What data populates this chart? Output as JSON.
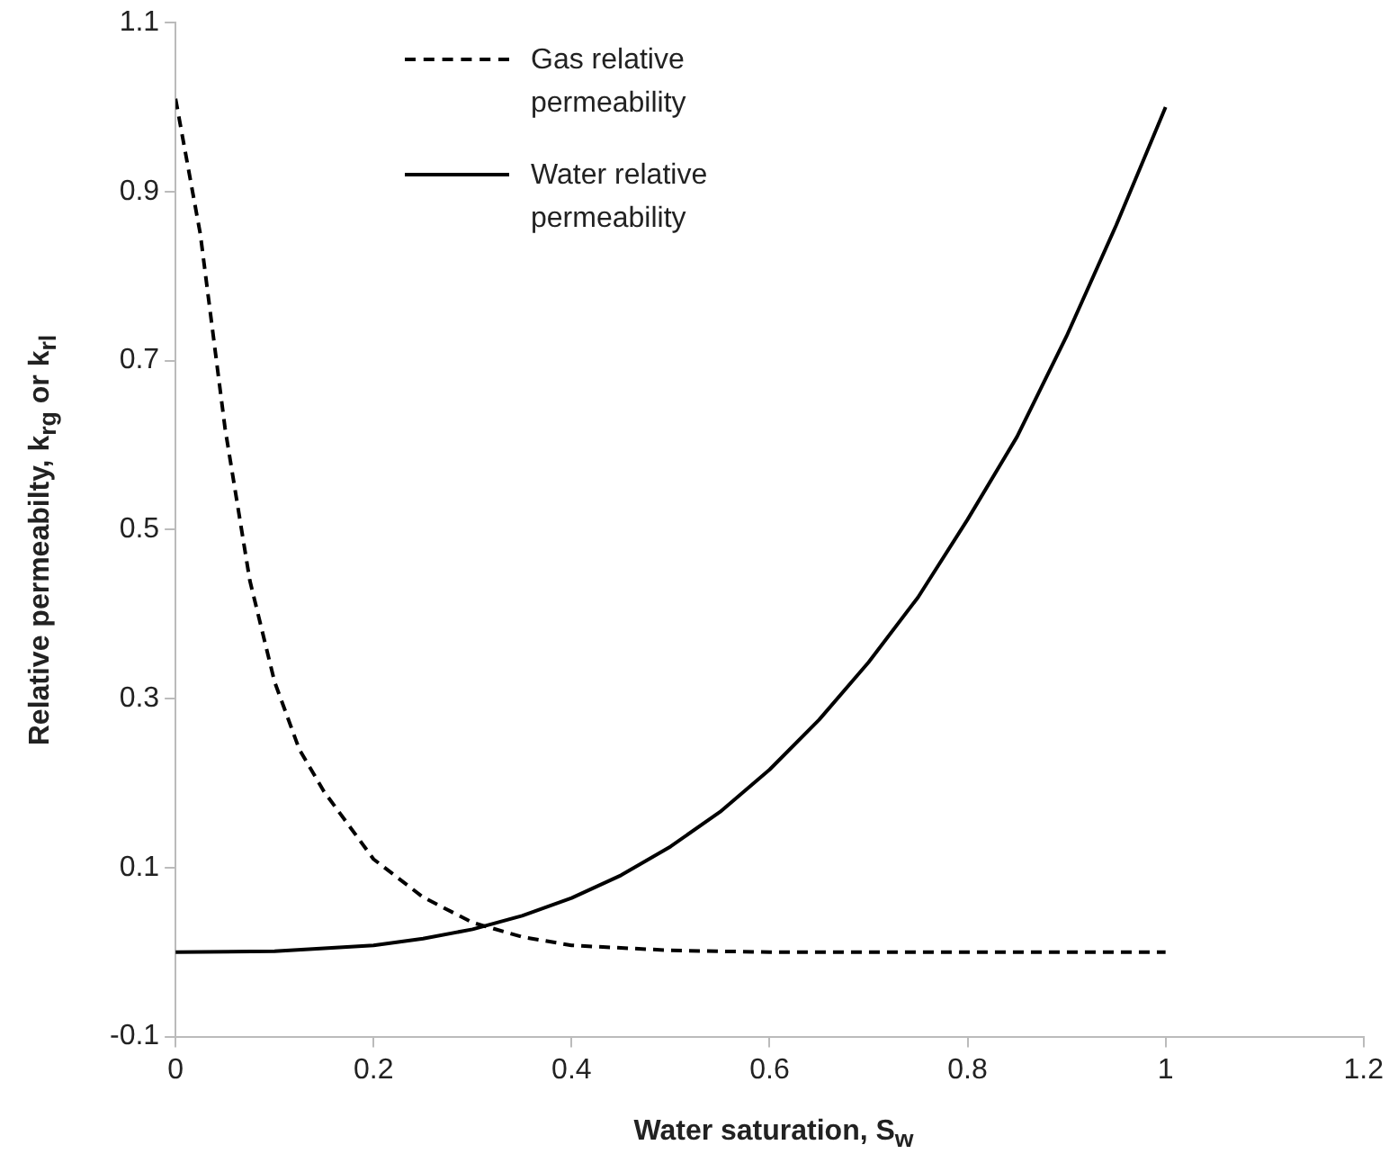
{
  "chart_data": {
    "type": "line",
    "xlabel": "Water saturation, S$_{w}$",
    "ylabel": "Relative permeabilty, k$_{rg}$ or k$_{rl}$",
    "xlim": [
      0,
      1.2
    ],
    "xticks": [
      0,
      0.2,
      0.4,
      0.6,
      0.8,
      1,
      1.2
    ],
    "ylim": [
      -0.1,
      1.1
    ],
    "yticks": [
      -0.1,
      0.1,
      0.3,
      0.5,
      0.7,
      0.9,
      1.1
    ],
    "grid": false,
    "legend": "top",
    "marker": "none",
    "series": [
      {
        "name": "Gas relative permeability",
        "color": "#000000",
        "line_style": "dashed",
        "x": [
          0,
          0.025,
          0.05,
          0.075,
          0.1,
          0.125,
          0.15,
          0.2,
          0.25,
          0.3,
          0.35,
          0.4,
          0.5,
          0.6,
          0.8,
          1
        ],
        "values": [
          1.01,
          0.85,
          0.62,
          0.44,
          0.32,
          0.24,
          0.19,
          0.11,
          0.065,
          0.035,
          0.018,
          0.008,
          0.002,
          0,
          0,
          0
        ]
      },
      {
        "name": "Water relative permeability",
        "color": "#000000",
        "line_style": "solid",
        "x": [
          0,
          0.1,
          0.2,
          0.25,
          0.3,
          0.35,
          0.4,
          0.45,
          0.5,
          0.55,
          0.6,
          0.65,
          0.7,
          0.75,
          0.8,
          0.85,
          0.9,
          0.95,
          1
        ],
        "values": [
          0,
          0.001,
          0.008,
          0.016,
          0.027,
          0.043,
          0.064,
          0.091,
          0.125,
          0.166,
          0.216,
          0.275,
          0.343,
          0.42,
          0.512,
          0.61,
          0.729,
          0.86,
          1
        ]
      }
    ]
  }
}
